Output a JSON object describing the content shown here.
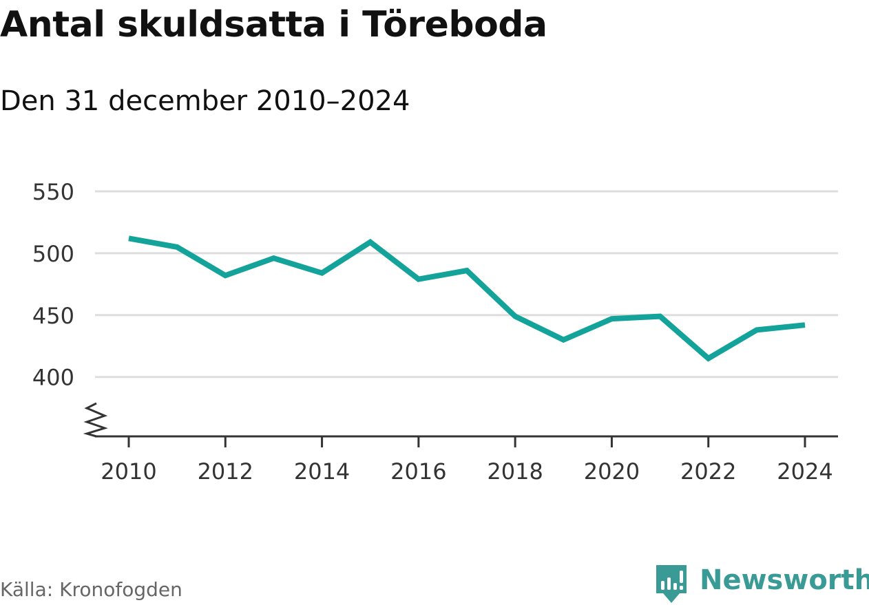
{
  "header": {
    "title": "Antal skuldsatta i Töreboda",
    "subtitle": "Den 31 december 2010–2024"
  },
  "footer": {
    "source": "Källa: Kronofogden",
    "brand": "Newsworthy"
  },
  "icons": {
    "brand_logo": "newsworthy-logo-icon",
    "axis_break": "axis-break-icon"
  },
  "colors": {
    "line": "#14a39a",
    "grid": "#dddddd",
    "axis": "#333333",
    "brand": "#3a9a96"
  },
  "chart_data": {
    "type": "line",
    "title": "Antal skuldsatta i Töreboda",
    "subtitle": "Den 31 december 2010–2024",
    "xlabel": "",
    "ylabel": "",
    "x": [
      2010,
      2011,
      2012,
      2013,
      2014,
      2015,
      2016,
      2017,
      2018,
      2019,
      2020,
      2021,
      2022,
      2023,
      2024
    ],
    "series": [
      {
        "name": "Antal skuldsatta",
        "values": [
          512,
          505,
          482,
          496,
          484,
          509,
          479,
          486,
          449,
          430,
          447,
          449,
          415,
          438,
          442
        ]
      }
    ],
    "xticks": [
      2010,
      2012,
      2014,
      2016,
      2018,
      2020,
      2022,
      2024
    ],
    "xtick_labels": [
      "2010",
      "2012",
      "2014",
      "2016",
      "2018",
      "2020",
      "2022",
      "2024"
    ],
    "yticks": [
      400,
      450,
      500,
      550
    ],
    "ytick_labels": [
      "400",
      "450",
      "500",
      "550"
    ],
    "ylim": [
      352,
      550
    ],
    "xlim": [
      2010,
      2024
    ],
    "grid": true,
    "axis_break": true
  }
}
